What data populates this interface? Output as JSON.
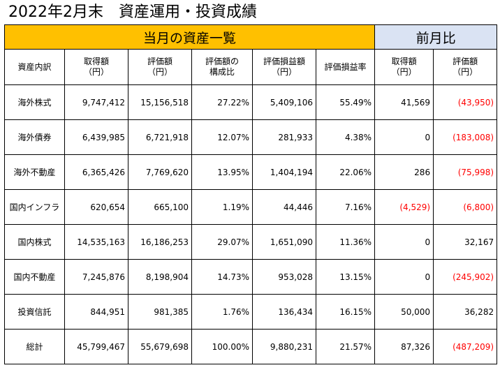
{
  "title": "2022年2月末　資産運用・投資成績",
  "band": {
    "current": "当月の資産一覧",
    "previous": "前月比"
  },
  "headers": [
    {
      "line1": "資産内訳",
      "line2": ""
    },
    {
      "line1": "取得額",
      "line2": "（円）"
    },
    {
      "line1": "評価額",
      "line2": "（円）"
    },
    {
      "line1": "評価額の",
      "line2": "構成比"
    },
    {
      "line1": "評価損益額",
      "line2": "（円）"
    },
    {
      "line1": "評価損益率",
      "line2": ""
    },
    {
      "line1": "取得額",
      "line2": "（円）"
    },
    {
      "line1": "評価額",
      "line2": "（円）"
    }
  ],
  "rows": [
    {
      "label": "海外株式",
      "acquired": "9,747,412",
      "valuation": "15,156,518",
      "ratio": "27.22%",
      "gain": "5,409,106",
      "gain_rate": "55.49%",
      "diff_acquired": "41,569",
      "diff_acquired_neg": false,
      "diff_valuation": "(43,950)",
      "diff_valuation_neg": true
    },
    {
      "label": "海外債券",
      "acquired": "6,439,985",
      "valuation": "6,721,918",
      "ratio": "12.07%",
      "gain": "281,933",
      "gain_rate": "4.38%",
      "diff_acquired": "0",
      "diff_acquired_neg": false,
      "diff_valuation": "(183,008)",
      "diff_valuation_neg": true
    },
    {
      "label": "海外不動産",
      "acquired": "6,365,426",
      "valuation": "7,769,620",
      "ratio": "13.95%",
      "gain": "1,404,194",
      "gain_rate": "22.06%",
      "diff_acquired": "286",
      "diff_acquired_neg": false,
      "diff_valuation": "(75,998)",
      "diff_valuation_neg": true
    },
    {
      "label": "国内インフラ",
      "acquired": "620,654",
      "valuation": "665,100",
      "ratio": "1.19%",
      "gain": "44,446",
      "gain_rate": "7.16%",
      "diff_acquired": "(4,529)",
      "diff_acquired_neg": true,
      "diff_valuation": "(6,800)",
      "diff_valuation_neg": true
    },
    {
      "label": "国内株式",
      "acquired": "14,535,163",
      "valuation": "16,186,253",
      "ratio": "29.07%",
      "gain": "1,651,090",
      "gain_rate": "11.36%",
      "diff_acquired": "0",
      "diff_acquired_neg": false,
      "diff_valuation": "32,167",
      "diff_valuation_neg": false
    },
    {
      "label": "国内不動産",
      "acquired": "7,245,876",
      "valuation": "8,198,904",
      "ratio": "14.73%",
      "gain": "953,028",
      "gain_rate": "13.15%",
      "diff_acquired": "0",
      "diff_acquired_neg": false,
      "diff_valuation": "(245,902)",
      "diff_valuation_neg": true
    },
    {
      "label": "投資信託",
      "acquired": "844,951",
      "valuation": "981,385",
      "ratio": "1.76%",
      "gain": "136,434",
      "gain_rate": "16.15%",
      "diff_acquired": "50,000",
      "diff_acquired_neg": false,
      "diff_valuation": "36,282",
      "diff_valuation_neg": false
    },
    {
      "label": "総計",
      "acquired": "45,799,467",
      "valuation": "55,679,698",
      "ratio": "100.00%",
      "gain": "9,880,231",
      "gain_rate": "21.57%",
      "diff_acquired": "87,326",
      "diff_acquired_neg": false,
      "diff_valuation": "(487,209)",
      "diff_valuation_neg": true
    }
  ],
  "colors": {
    "band_current": "#ffc000",
    "band_previous": "#dae3f3",
    "negative": "#ff0000"
  }
}
